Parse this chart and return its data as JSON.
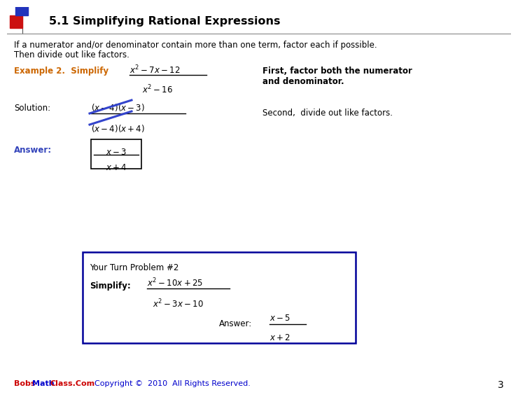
{
  "title": "5.1 Simplifying Rational Expressions",
  "bg_color": "#ffffff",
  "title_color": "#000000",
  "body_text_color": "#000000",
  "example_color": "#cc6600",
  "answer_color": "#3344bb",
  "footer_color_bobs": "#cc0000",
  "footer_color_math": "#0000cc",
  "slide_number": "3",
  "intro_line1": "If a numerator and/or denominator contain more than one term, factor each if possible.",
  "intro_line2": "Then divide out like factors.",
  "strike_color": "#3344cc",
  "box_border_color": "#000000",
  "ytp_border_color": "#000099"
}
